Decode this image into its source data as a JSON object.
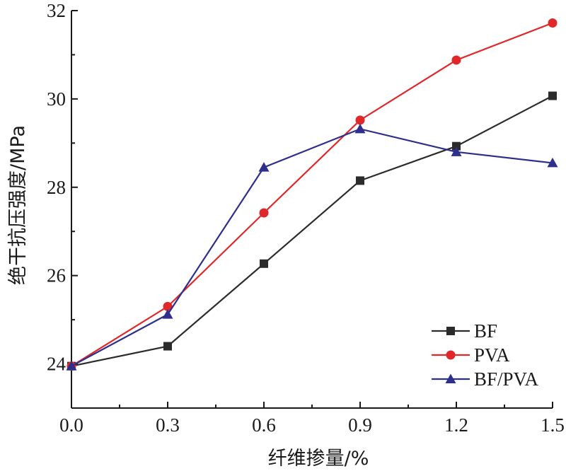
{
  "chart_data": {
    "type": "line",
    "xlabel": "纤维掺量/%",
    "ylabel": "绝干抗压强度/MPa",
    "xlim": [
      0,
      1.5
    ],
    "ylim": [
      23,
      32
    ],
    "x_ticks": [
      "0.0",
      "0.3",
      "0.6",
      "0.9",
      "1.2",
      "1.5"
    ],
    "y_ticks": [
      "24",
      "26",
      "28",
      "30",
      "32"
    ],
    "x": [
      0.0,
      0.3,
      0.6,
      0.9,
      1.2,
      1.5
    ],
    "series": [
      {
        "name": "BF",
        "values": [
          23.95,
          24.4,
          26.27,
          28.15,
          28.93,
          30.07
        ],
        "color": "#2b2b2b",
        "marker": "square"
      },
      {
        "name": "PVA",
        "values": [
          23.95,
          25.3,
          27.42,
          29.52,
          30.88,
          31.72
        ],
        "color": "#e0282a",
        "marker": "circle"
      },
      {
        "name": "BF/PVA",
        "values": [
          23.95,
          25.12,
          28.45,
          29.32,
          28.8,
          28.55
        ],
        "color": "#2e2e8c",
        "marker": "triangle"
      }
    ],
    "legend": "bottom-right",
    "grid": false
  }
}
